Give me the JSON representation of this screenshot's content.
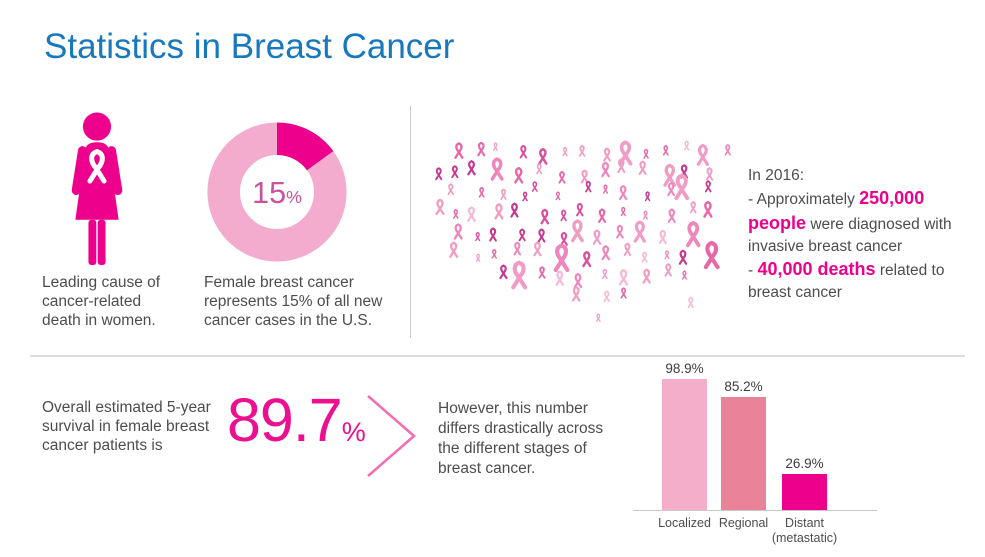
{
  "title": "Statistics in Breast Cancer",
  "colors": {
    "title_blue": "#1878be",
    "body_text_gray": "#4d4d4f",
    "magenta_accent": "#ec008c",
    "donut_ring_pink": "#f3abce",
    "donut_label_pink": "#c9529c",
    "chevron_pink": "#f46eb5",
    "divider_gray": "#d9d9d9"
  },
  "top_section": {
    "woman_fact": "Leading cause of cancer-related death in women.",
    "donut_caption": "Female breast cancer represents 15% of all new cancer cases in the U.S.",
    "map": {
      "region": "United States",
      "style": "map silhouette composed of pink awareness ribbons",
      "ribbon_colors": [
        "#f6b9d6",
        "#f19cc7",
        "#ee86bb",
        "#e668a8",
        "#d94f9f",
        "#c43a90",
        "#ef9ec2"
      ]
    },
    "stats_2016": {
      "lines": [
        {
          "segments": [
            {
              "t": "In 2016:",
              "hl": false
            }
          ]
        },
        {
          "segments": [
            {
              "t": "- Approximately ",
              "hl": false
            },
            {
              "t": "250,000 people",
              "hl": true
            },
            {
              "t": " were diagnosed with invasive breast cancer",
              "hl": false
            }
          ]
        },
        {
          "segments": [
            {
              "t": "- ",
              "hl": false
            },
            {
              "t": "40,000 deaths",
              "hl": true
            },
            {
              "t": " related to breast cancer",
              "hl": false
            }
          ]
        }
      ]
    }
  },
  "bottom_section": {
    "survival_text": "Overall estimated 5-year survival in female breast cancer patients is",
    "survival_value": "89.7",
    "survival_unit": "%",
    "however_text": "However, this number differs drastically across the different stages of breast cancer."
  },
  "chart_data": [
    {
      "type": "pie",
      "subtype": "donut",
      "center_label_value": "15",
      "center_label_unit": "%",
      "values": [
        15,
        85
      ],
      "slice_colors": [
        "#ec008c",
        "#f3abce"
      ],
      "caption": "Female breast cancer represents 15% of all new cancer cases in the U.S.",
      "legend": false
    },
    {
      "type": "bar",
      "title": "5-year survival by stage",
      "categories": [
        "Localized",
        "Regional",
        "Distant\n(metastatic)"
      ],
      "values": [
        98.9,
        85.2,
        26.9
      ],
      "data_labels": [
        "98.9%",
        "85.2%",
        "26.9%"
      ],
      "bar_colors": [
        "#f5aeca",
        "#e8839a",
        "#ec008c"
      ],
      "ylim": [
        0,
        100
      ],
      "grid": false,
      "legend": false
    }
  ]
}
